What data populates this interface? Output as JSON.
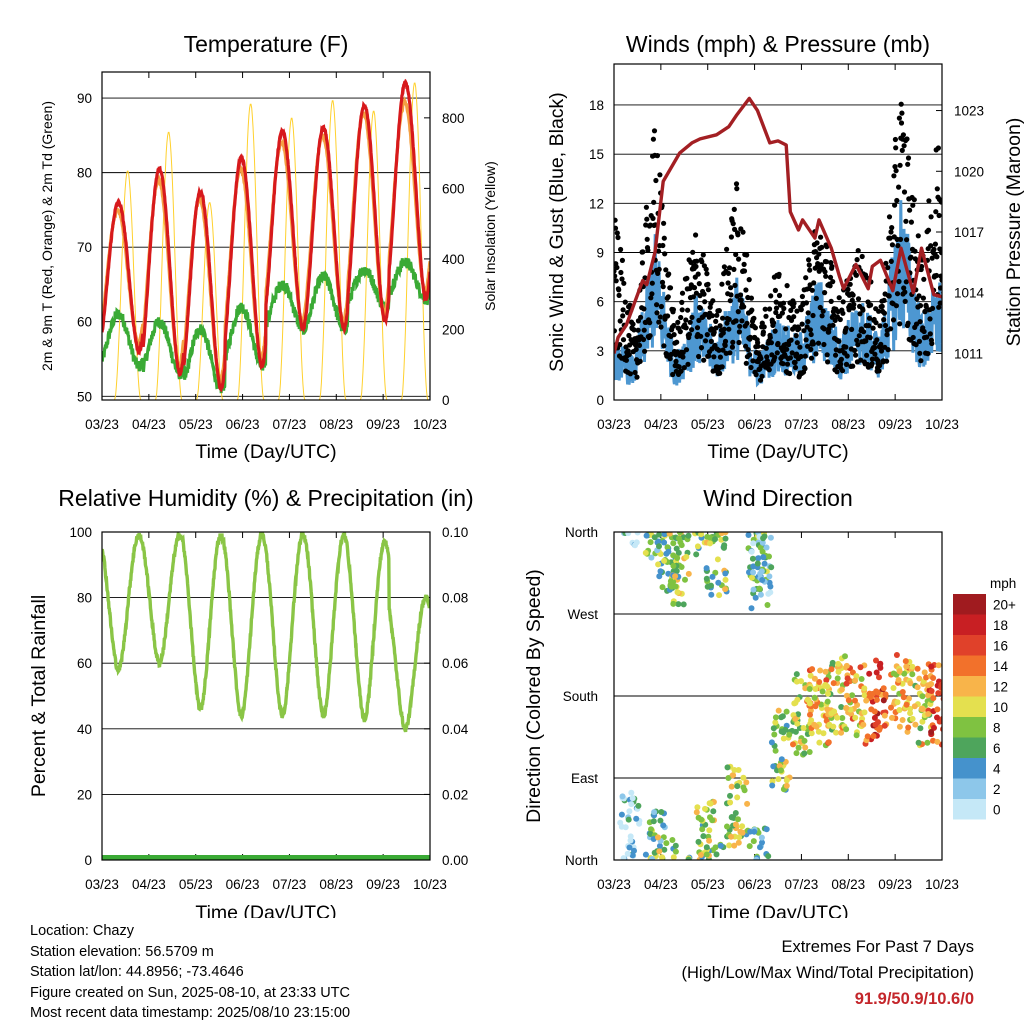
{
  "chart_data": [
    {
      "type": "line",
      "title": "Temperature (F)",
      "xlabel": "Time (Day/UTC)",
      "ylabel": "2m & 9m T (Red, Orange) & 2m Td (Green)",
      "y2label": "Solar Insolation (Yellow)",
      "x_ticks": [
        "03/23",
        "04/23",
        "05/23",
        "06/23",
        "07/23",
        "08/23",
        "09/23",
        "10/23"
      ],
      "y_ticks": [
        50,
        60,
        70,
        80,
        90
      ],
      "y2_ticks": [
        0,
        200,
        400,
        600,
        800
      ],
      "ylim": [
        49.5,
        93.5
      ],
      "y2lim": [
        0,
        930
      ],
      "grid": true,
      "series": [
        {
          "name": "2m T",
          "color": "#d7191c",
          "x": [
            "03/23",
            "04/23",
            "05/23",
            "06/23",
            "07/23",
            "08/23",
            "09/23",
            "10/23"
          ],
          "max": [
            76,
            80.5,
            77.5,
            82,
            85.5,
            86,
            89,
            92
          ],
          "min": [
            56,
            53,
            51,
            54,
            59,
            59,
            60,
            63
          ]
        },
        {
          "name": "9m T",
          "color": "#f4a043",
          "x": [
            "03/23",
            "04/23",
            "05/23",
            "06/23",
            "07/23",
            "08/23",
            "09/23",
            "10/23"
          ],
          "max": [
            75,
            79,
            76.5,
            80.5,
            84,
            85,
            88,
            89.5
          ],
          "min": [
            57,
            54,
            52,
            55,
            60,
            60,
            61,
            64
          ]
        },
        {
          "name": "2m Td",
          "color": "#3aaa35",
          "x": [
            "03/23",
            "04/23",
            "05/23",
            "06/23",
            "07/23",
            "08/23",
            "09/23",
            "10/23"
          ],
          "max": [
            61,
            60,
            59,
            62,
            65,
            66,
            67,
            68
          ],
          "min": [
            54,
            53,
            51,
            54,
            59,
            59,
            62,
            63
          ]
        },
        {
          "name": "Solar Insolation",
          "color": "#ffd12e",
          "axis": "right",
          "peak": [
            650,
            760,
            560,
            840,
            800,
            850,
            820,
            900
          ]
        }
      ]
    },
    {
      "type": "scatter",
      "title": "Winds (mph) & Pressure (mb)",
      "xlabel": "Time (Day/UTC)",
      "ylabel": "Sonic Wind & Gust (Blue, Black)",
      "y2label": "Station Pressure (Maroon)",
      "x_ticks": [
        "03/23",
        "04/23",
        "05/23",
        "06/23",
        "07/23",
        "08/23",
        "09/23",
        "10/23"
      ],
      "y_ticks": [
        0,
        3,
        6,
        9,
        12,
        15,
        18
      ],
      "y2_ticks": [
        1011,
        1014,
        1017,
        1020,
        1023
      ],
      "ylim": [
        0,
        20.5
      ],
      "y2lim": [
        1008.7,
        1025.3
      ],
      "grid": true,
      "series": [
        {
          "name": "Wind",
          "color": "#4d97d1",
          "x": [
            0,
            0.5,
            1,
            1.5,
            2,
            2.5,
            3,
            3.5,
            4,
            4.5,
            5,
            5.5,
            6,
            6.5,
            7,
            7.5,
            8
          ],
          "y": [
            3,
            2,
            8,
            2,
            5,
            3,
            6,
            2,
            4,
            3,
            6,
            3,
            5,
            3,
            10,
            4,
            6
          ]
        },
        {
          "name": "Gust",
          "color": "#000000",
          "x": [
            0,
            0.5,
            1,
            1.5,
            2,
            2.5,
            3,
            3.5,
            4,
            4.5,
            5,
            5.5,
            6,
            6.5,
            7,
            7.5,
            8
          ],
          "y": [
            11,
            4,
            16.5,
            4,
            10.5,
            5,
            13,
            4,
            8,
            5,
            11.5,
            6,
            9,
            5,
            19,
            8,
            18
          ]
        },
        {
          "name": "Pressure",
          "color": "#a31f23",
          "axis": "right",
          "x": [
            0,
            0.1,
            0.3,
            0.7,
            0.8,
            1.0,
            1.2,
            1.6,
            1.9,
            2.1,
            2.5,
            2.8,
            3.0,
            3.3,
            3.5,
            3.8,
            4.0,
            4.2,
            4.3,
            4.5,
            4.6,
            4.9,
            5.0,
            5.3,
            5.5,
            5.6,
            5.9,
            6.2,
            6.3,
            6.5,
            6.8,
            7.0,
            7.3,
            7.5,
            7.8,
            8.0
          ],
          "y": [
            1011,
            1011.8,
            1012.4,
            1014.6,
            1014.4,
            1016,
            1019.5,
            1020.9,
            1021.4,
            1021.6,
            1021.8,
            1022.2,
            1022.8,
            1023.6,
            1023.0,
            1021.4,
            1021.5,
            1021.3,
            1018,
            1017.1,
            1017.6,
            1016.7,
            1017.6,
            1016.2,
            1014.8,
            1014.2,
            1015.4,
            1014.2,
            1015.3,
            1015.6,
            1014.1,
            1016.2,
            1014.0,
            1016.2,
            1013.9,
            1013.8
          ]
        }
      ]
    },
    {
      "type": "line",
      "title": "Relative Humidity (%) & Precipitation (in)",
      "xlabel": "Time (Day/UTC)",
      "ylabel": "Percent & Total Rainfall",
      "x_ticks": [
        "03/23",
        "04/23",
        "05/23",
        "06/23",
        "07/23",
        "08/23",
        "09/23",
        "10/23"
      ],
      "y_ticks": [
        0,
        20,
        40,
        60,
        80,
        100
      ],
      "y2_ticks": [
        "0.00",
        "0.02",
        "0.04",
        "0.06",
        "0.08",
        "0.10"
      ],
      "ylim": [
        0,
        100
      ],
      "y2lim": [
        0,
        0.1
      ],
      "grid": true,
      "series": [
        {
          "name": "Relative Humidity",
          "color": "#8ac546",
          "x": [
            "03/23",
            "04/23",
            "05/23",
            "06/23",
            "07/23",
            "08/23",
            "09/23",
            "10/23"
          ],
          "max": [
            99,
            99,
            99,
            99,
            99,
            99,
            97,
            80
          ],
          "min": [
            58,
            60,
            46,
            44,
            44,
            44,
            43,
            40
          ]
        },
        {
          "name": "Total Rainfall",
          "color": "#3aaa35",
          "axis": "right",
          "x": [
            "03/23",
            "10/23"
          ],
          "y": [
            0,
            0
          ]
        }
      ]
    },
    {
      "type": "scatter",
      "title": "Wind Direction",
      "xlabel": "Time (Day/UTC)",
      "ylabel": "Direction (Colored By Speed)",
      "x_ticks": [
        "03/23",
        "04/23",
        "05/23",
        "06/23",
        "07/23",
        "08/23",
        "09/23",
        "10/23"
      ],
      "y_ticks": [
        "North",
        "East",
        "South",
        "West",
        "North"
      ],
      "ylim": [
        0,
        360
      ],
      "grid": true,
      "legend": {
        "title": "mph",
        "labels": [
          "0",
          "2",
          "4",
          "6",
          "8",
          "10",
          "12",
          "14",
          "16",
          "18",
          "20+"
        ],
        "colors": [
          "#c5e8f7",
          "#8dc7ea",
          "#4592cc",
          "#4ea55c",
          "#7fc241",
          "#e4e04f",
          "#f8b44a",
          "#f2712b",
          "#e0412a",
          "#c81f23",
          "#a01b1f"
        ],
        "position": "right"
      },
      "series": [
        {
          "name": "Direction",
          "x": [
            0.4,
            1.0,
            1.3,
            1.6,
            2.2,
            2.5,
            3.0,
            3.5,
            3.6,
            4.1,
            4.6,
            5.0,
            5.4,
            5.9,
            6.4,
            7.0,
            7.5,
            7.9
          ],
          "y": [
            30,
            10,
            340,
            325,
            20,
            335,
            60,
            350,
            320,
            120,
            160,
            170,
            180,
            170,
            175,
            180,
            170,
            170
          ],
          "speed": [
            1,
            3,
            4,
            4,
            4,
            4,
            4,
            3,
            2,
            4,
            5,
            6,
            5,
            6,
            8,
            6,
            5,
            8
          ]
        }
      ]
    }
  ],
  "info": {
    "location": "Location: Chazy",
    "elevation": "Station elevation: 56.5709 m",
    "latlon": "Station lat/lon: 44.8956; -73.4646",
    "created": "Figure created on Sun, 2025-08-10, at 23:33 UTC",
    "recent": "Most recent data timestamp: 2025/08/10 23:15:00"
  },
  "extremes": {
    "title": "Extremes For Past 7 Days",
    "subtitle": "(High/Low/Max Wind/Total Precipitation)",
    "values": "91.9/50.9/10.6/0"
  }
}
